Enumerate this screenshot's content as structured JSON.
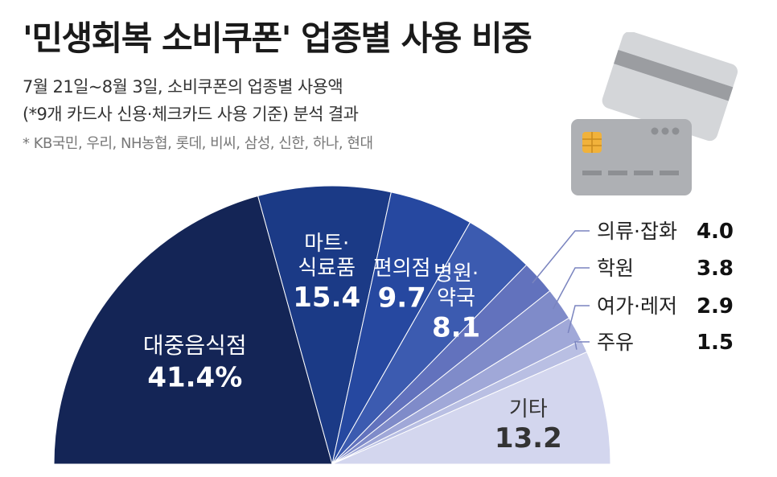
{
  "title": "'민생회복 소비쿠폰' 업종별 사용 비중",
  "subtitle_line1": "7월 21일~8월 3일, 소비쿠폰의 업종별 사용액",
  "subtitle_line2": "(*9개 카드사 신용·체크카드 사용 기준) 분석 결과",
  "footnote": "* KB국민, 우리, NH농협, 롯데, 비씨, 삼성, 신한, 하나, 현대",
  "colors": {
    "c0": "#142556",
    "c1": "#1b3a86",
    "c2": "#2648a0",
    "c3": "#3c5bb0",
    "c4": "#6272bd",
    "c5": "#7f8bc9",
    "c6": "#a0a8d8",
    "c7": "#b9bfe3",
    "c8": "#d3d6ee",
    "leader": "#7a84bf",
    "card_gray": "#b3b5b8",
    "card_light": "#dcdee0",
    "chip": "#f0b23c"
  },
  "chart_data": {
    "type": "pie",
    "subtype": "semicircle",
    "unit": "%",
    "slices": [
      {
        "name": "대중음식점",
        "value": 41.4,
        "value_label": "41.4%",
        "label_lines": [
          "대중음식점"
        ],
        "color_key": "c0",
        "label_mode": "inside",
        "text_color": "#ffffff"
      },
      {
        "name": "마트·식료품",
        "value": 15.4,
        "value_label": "15.4",
        "label_lines": [
          "마트·",
          "식료품"
        ],
        "color_key": "c1",
        "label_mode": "inside",
        "text_color": "#ffffff"
      },
      {
        "name": "편의점",
        "value": 9.7,
        "value_label": "9.7",
        "label_lines": [
          "편의점"
        ],
        "color_key": "c2",
        "label_mode": "inside",
        "text_color": "#ffffff"
      },
      {
        "name": "병원·약국",
        "value": 8.1,
        "value_label": "8.1",
        "label_lines": [
          "병원·",
          "약국"
        ],
        "color_key": "c3",
        "label_mode": "inside",
        "text_color": "#ffffff"
      },
      {
        "name": "의류·잡화",
        "value": 4.0,
        "value_label": "4.0",
        "label_lines": [
          "의류·잡화"
        ],
        "color_key": "c4",
        "label_mode": "outside"
      },
      {
        "name": "학원",
        "value": 3.8,
        "value_label": "3.8",
        "label_lines": [
          "학원"
        ],
        "color_key": "c5",
        "label_mode": "outside"
      },
      {
        "name": "여가·레저",
        "value": 2.9,
        "value_label": "2.9",
        "label_lines": [
          "여가·레저"
        ],
        "color_key": "c6",
        "label_mode": "outside"
      },
      {
        "name": "주유",
        "value": 1.5,
        "value_label": "1.5",
        "label_lines": [
          "주유"
        ],
        "color_key": "c7",
        "label_mode": "outside"
      },
      {
        "name": "기타",
        "value": 13.2,
        "value_label": "13.2",
        "label_lines": [
          "기타"
        ],
        "color_key": "c8",
        "label_mode": "inside",
        "text_color": "#333333"
      }
    ]
  }
}
